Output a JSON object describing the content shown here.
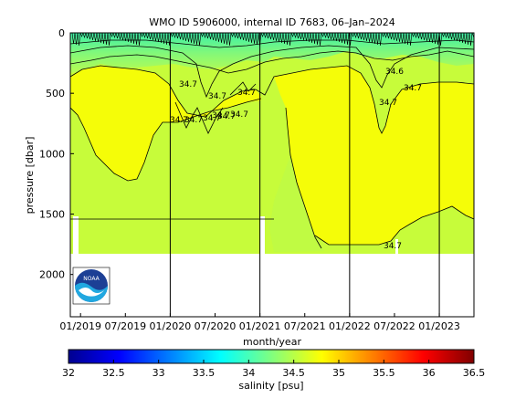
{
  "chart_data": {
    "type": "heatmap",
    "title": "WMO ID 5906000, internal ID 7683, 06–Jan–2024",
    "xlabel": "month/year",
    "ylabel": "pressure [dbar]",
    "x_ticks": [
      "01/2019",
      "07/2019",
      "01/2020",
      "07/2020",
      "01/2021",
      "07/2021",
      "01/2022",
      "07/2022",
      "01/2023"
    ],
    "x_range": [
      "2018-12",
      "2023-06"
    ],
    "y_ticks": [
      0,
      500,
      1000,
      1500,
      2000
    ],
    "ylim": [
      2350,
      0
    ],
    "y_reversed": true,
    "year_lines": [
      "01/2020",
      "01/2021",
      "01/2022",
      "01/2023"
    ],
    "colorbar": {
      "label": "salinity [psu]",
      "min": 32,
      "max": 36.5,
      "ticks": [
        "32",
        "32.5",
        "33",
        "33.5",
        "34",
        "34.5",
        "35",
        "35.5",
        "36",
        "36.5"
      ]
    },
    "background_value": 34.67,
    "surface_value": 34.3,
    "contour_labels": [
      "34.7",
      "34.7",
      "34.7",
      "34.7",
      "34.7",
      "34.7",
      "34.7",
      "34.7",
      "34.7",
      "34.6",
      "34.7",
      "34.7",
      "34.7"
    ],
    "logo_name": "NOAA"
  }
}
